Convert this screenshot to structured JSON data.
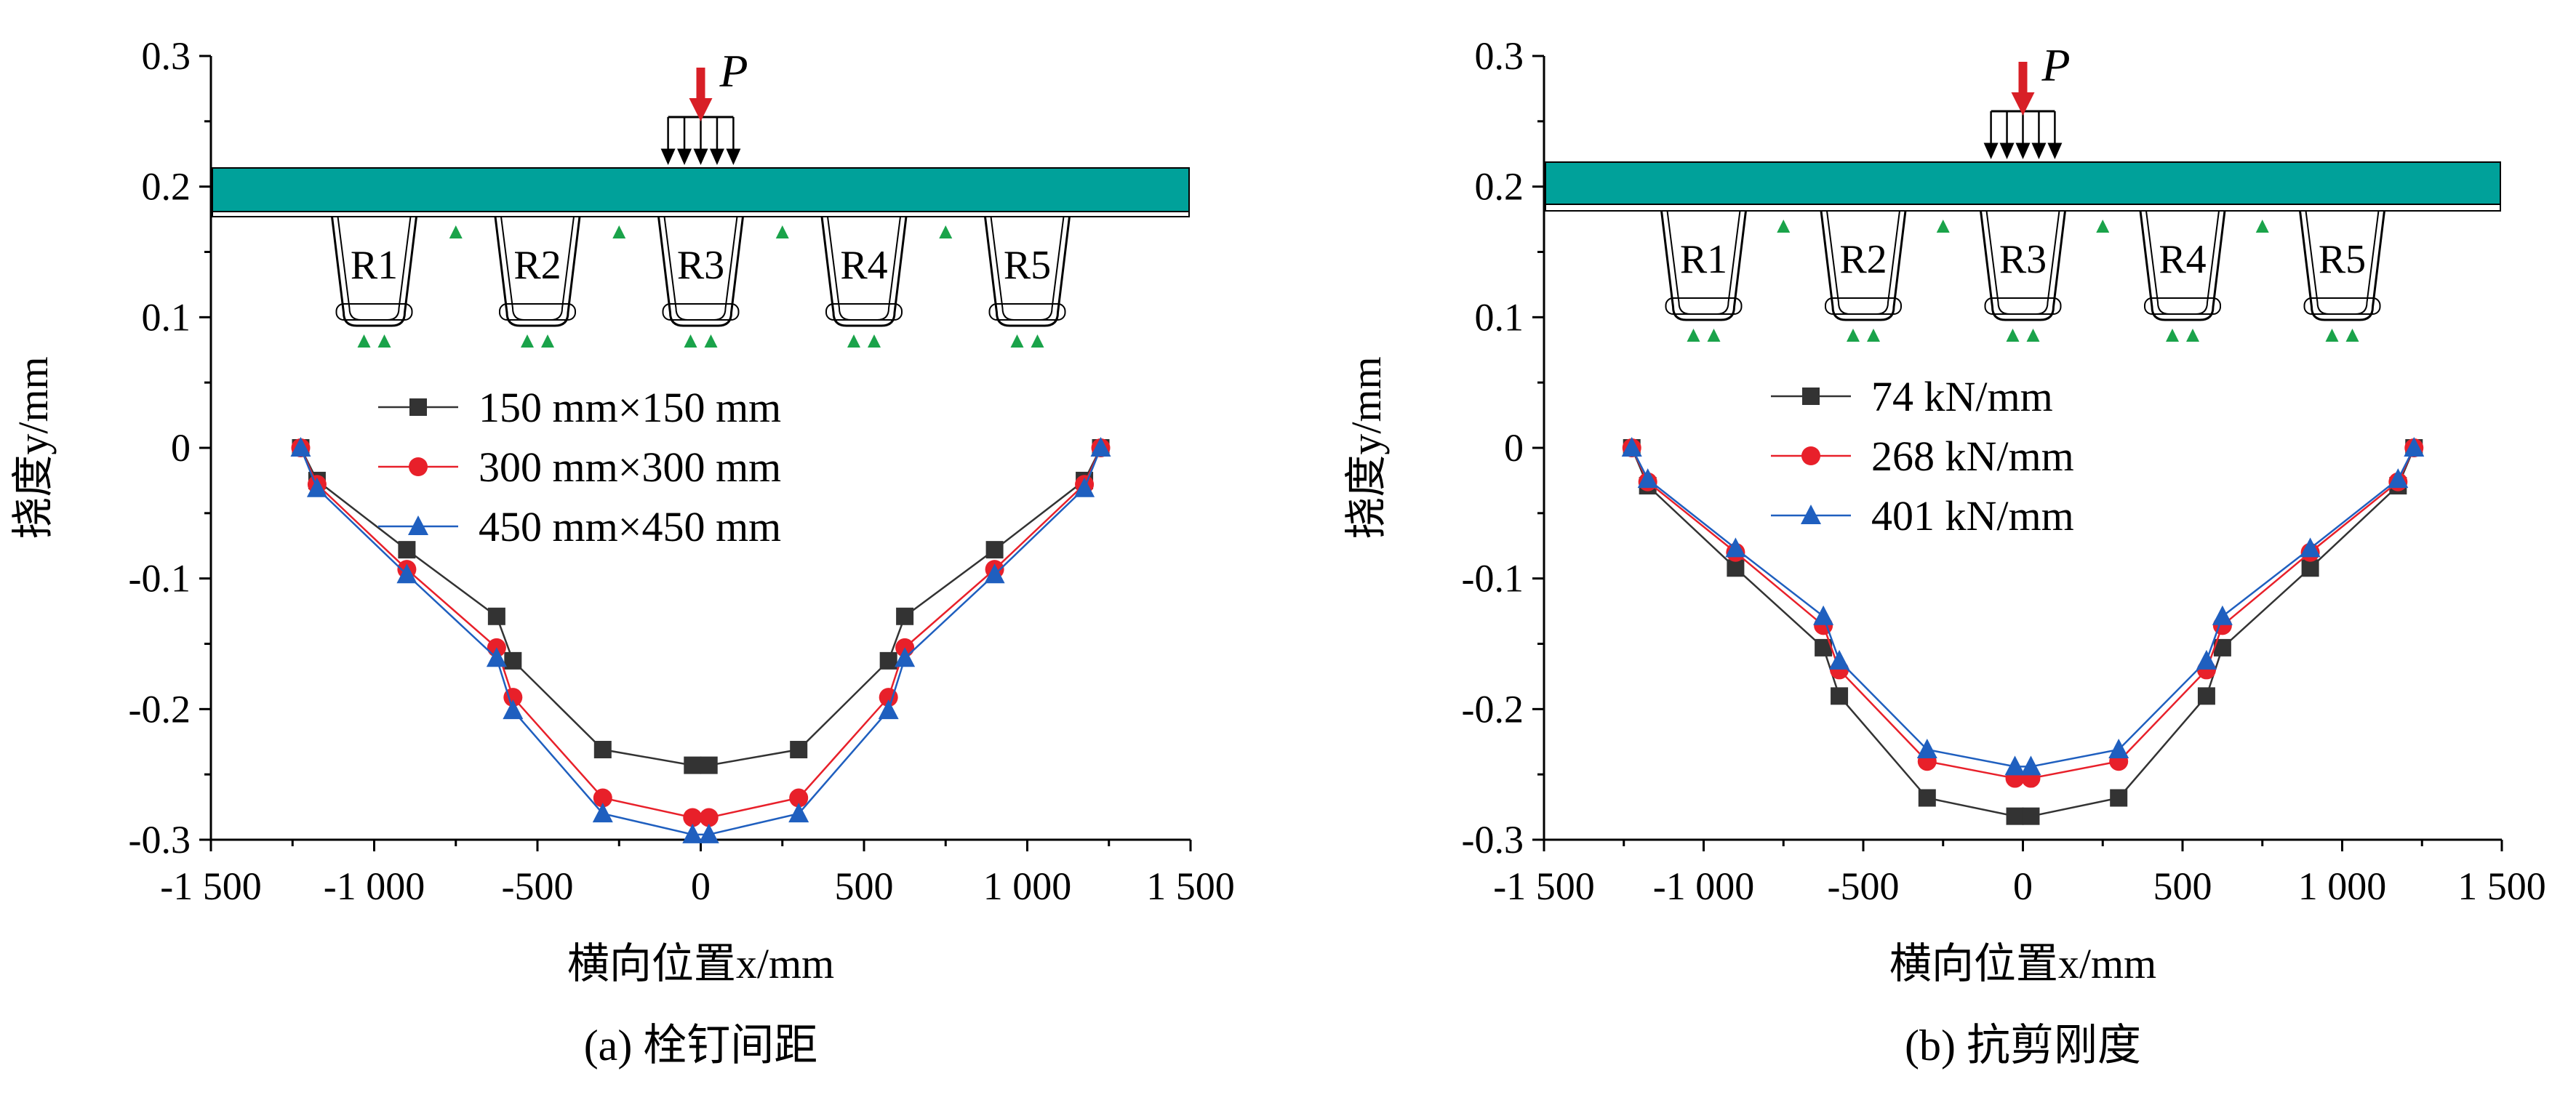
{
  "chart_data": [
    {
      "type": "line",
      "caption": "(a) 栓钉间距",
      "xlabel": "横向位置x/mm",
      "ylabel": "挠度y/mm",
      "xlim": [
        -1500,
        1500
      ],
      "ylim": [
        -0.3,
        0.3
      ],
      "xticks": [
        -1500,
        -1000,
        -500,
        0,
        500,
        1000,
        1500
      ],
      "xtick_labels": [
        "-1 500",
        "-1 000",
        "-500",
        "0",
        "500",
        "1 000",
        "1 500"
      ],
      "yticks": [
        0.3,
        0.2,
        0.1,
        0,
        -0.1,
        -0.2,
        -0.3
      ],
      "ytick_labels": [
        "0.3",
        "0.2",
        "0.1",
        "0",
        "-0.1",
        "-0.2",
        "-0.3"
      ],
      "grid": false,
      "legend_position": "center",
      "load_label": "P",
      "girder_labels": [
        "R1",
        "R2",
        "R3",
        "R4",
        "R5"
      ],
      "x": [
        -1225,
        -1175,
        -900,
        -625,
        -575,
        -300,
        -25,
        25,
        300,
        575,
        625,
        900,
        1175,
        1225
      ],
      "series": [
        {
          "name": "150 mm×150 mm",
          "color": "#333333",
          "marker": "square",
          "values": [
            0,
            -0.025,
            -0.078,
            -0.129,
            -0.163,
            -0.231,
            -0.243,
            -0.243,
            -0.231,
            -0.163,
            -0.129,
            -0.078,
            -0.025,
            0
          ]
        },
        {
          "name": "300 mm×300 mm",
          "color": "#e8202a",
          "marker": "circle",
          "values": [
            0,
            -0.028,
            -0.093,
            -0.153,
            -0.191,
            -0.268,
            -0.283,
            -0.283,
            -0.268,
            -0.191,
            -0.153,
            -0.093,
            -0.028,
            0
          ]
        },
        {
          "name": "450 mm×450 mm",
          "color": "#1f5fbf",
          "marker": "triangle",
          "values": [
            0,
            -0.031,
            -0.097,
            -0.161,
            -0.201,
            -0.28,
            -0.296,
            -0.296,
            -0.28,
            -0.201,
            -0.161,
            -0.097,
            -0.031,
            0
          ]
        }
      ]
    },
    {
      "type": "line",
      "caption": "(b) 抗剪刚度",
      "xlabel": "横向位置x/mm",
      "ylabel": "挠度y/mm",
      "xlim": [
        -1500,
        1500
      ],
      "ylim": [
        -0.3,
        0.3
      ],
      "xticks": [
        -1500,
        -1000,
        -500,
        0,
        500,
        1000,
        1500
      ],
      "xtick_labels": [
        "-1 500",
        "-1 000",
        "-500",
        "0",
        "500",
        "1 000",
        "1 500"
      ],
      "yticks": [
        0.3,
        0.2,
        0.1,
        0,
        -0.1,
        -0.2,
        -0.3
      ],
      "ytick_labels": [
        "0.3",
        "0.2",
        "0.1",
        "0",
        "-0.1",
        "-0.2",
        "-0.3"
      ],
      "grid": false,
      "legend_position": "upper-left",
      "load_label": "P",
      "girder_labels": [
        "R1",
        "R2",
        "R3",
        "R4",
        "R5"
      ],
      "x": [
        -1225,
        -1175,
        -900,
        -625,
        -575,
        -300,
        -25,
        25,
        300,
        575,
        625,
        900,
        1175,
        1225
      ],
      "series": [
        {
          "name": "74 kN/mm",
          "color": "#333333",
          "marker": "square",
          "values": [
            0,
            -0.029,
            -0.092,
            -0.153,
            -0.19,
            -0.268,
            -0.282,
            -0.282,
            -0.268,
            -0.19,
            -0.153,
            -0.092,
            -0.029,
            0
          ]
        },
        {
          "name": "268 kN/mm",
          "color": "#e8202a",
          "marker": "circle",
          "values": [
            0,
            -0.026,
            -0.08,
            -0.136,
            -0.17,
            -0.24,
            -0.253,
            -0.253,
            -0.24,
            -0.17,
            -0.136,
            -0.08,
            -0.026,
            0
          ]
        },
        {
          "name": "401 kN/mm",
          "color": "#1f5fbf",
          "marker": "triangle",
          "values": [
            0,
            -0.024,
            -0.077,
            -0.129,
            -0.163,
            -0.231,
            -0.244,
            -0.244,
            -0.231,
            -0.163,
            -0.129,
            -0.077,
            -0.024,
            0
          ]
        }
      ]
    }
  ]
}
